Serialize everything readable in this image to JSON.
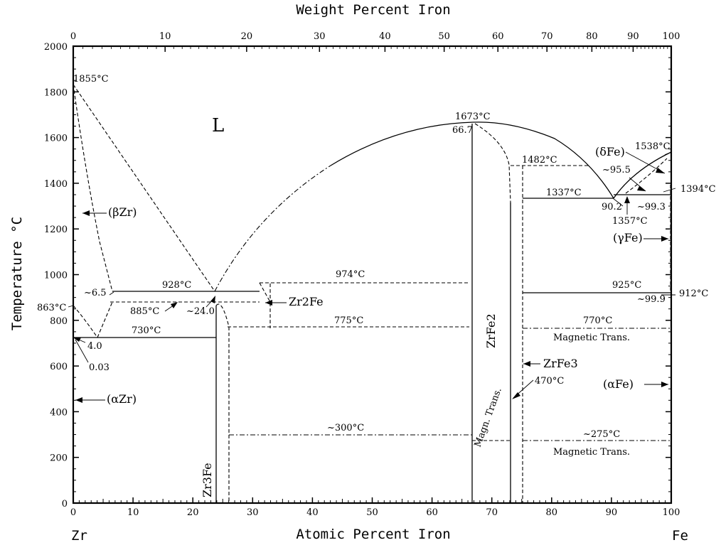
{
  "diagram": {
    "title_top": "Weight Percent Iron",
    "xlabel": "Atomic Percent Iron",
    "ylabel": "Temperature °C",
    "left_element": "Zr",
    "right_element": "Fe",
    "x_ticks_atomic": [
      "0",
      "10",
      "20",
      "30",
      "40",
      "50",
      "60",
      "70",
      "80",
      "90",
      "100"
    ],
    "x_ticks_weight": [
      "0",
      "10",
      "20",
      "30",
      "40",
      "50",
      "60",
      "70",
      "80",
      "90",
      "100"
    ],
    "y_ticks": [
      "0",
      "200",
      "400",
      "600",
      "800",
      "1000",
      "1200",
      "1400",
      "1600",
      "1800",
      "2000"
    ]
  },
  "phases": {
    "liquid": "L",
    "beta_zr": "(βZr)",
    "alpha_zr": "(αZr)",
    "gamma_fe": "(γFe)",
    "delta_fe": "(δFe)",
    "alpha_fe": "(αFe)",
    "zr2fe": "Zr2Fe",
    "zr3fe": "Zr3Fe",
    "zrfe2": "ZrFe2",
    "zrfe3": "ZrFe3",
    "magn_trans": "Magn. Trans."
  },
  "annotations": {
    "t1855": "1855°C",
    "t1673": "1673°C",
    "c667": "66.7",
    "t1482": "1482°C",
    "t1538": "1538°C",
    "c955": "~95.5",
    "t1394": "1394°C",
    "t1337": "1337°C",
    "c902": "90.2",
    "c993": "~99.3",
    "t1357": "1357°C",
    "t928": "928°C",
    "c65": "~6.5",
    "t974": "974°C",
    "t885": "885°C",
    "c240": "~24.0",
    "t863": "863°C",
    "t730": "730°C",
    "t775": "775°C",
    "c40": "4.0",
    "c003": "0.03",
    "t925": "925°C",
    "c999": "~99.9",
    "t912": "912°C",
    "t770": "770°C",
    "magnetic_trans_1": "Magnetic Trans.",
    "magnetic_trans_2": "Magnetic Trans.",
    "t470": "470°C",
    "t300": "~300°C",
    "t275": "~275°C"
  }
}
